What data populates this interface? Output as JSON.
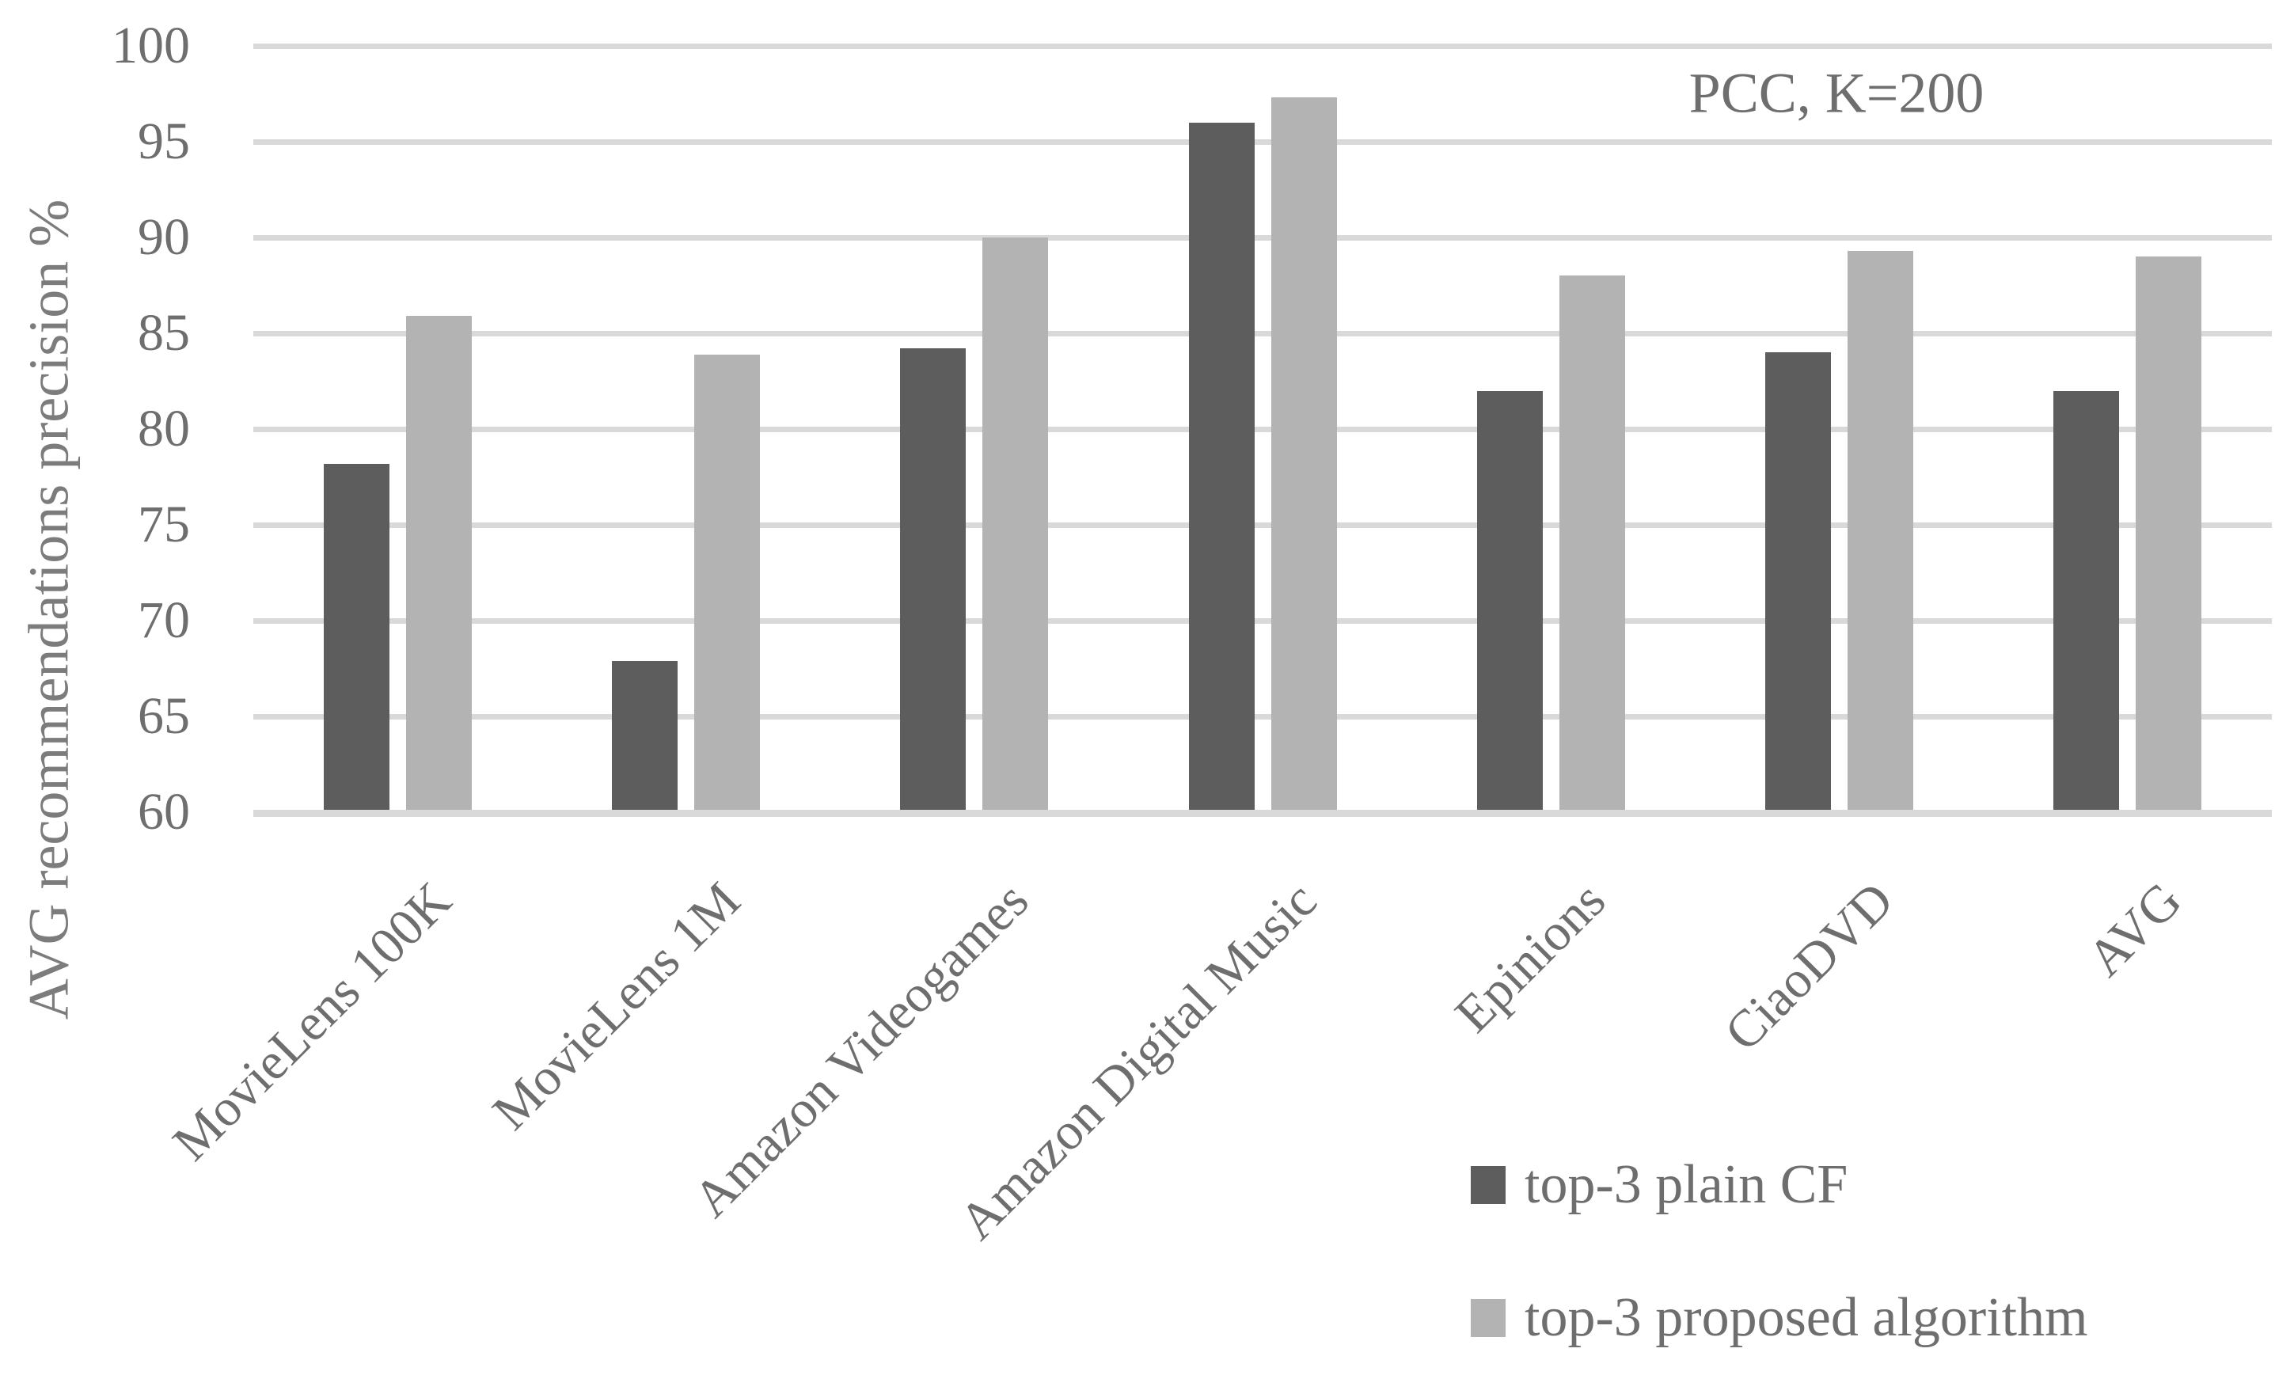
{
  "chart_data": {
    "type": "bar",
    "title": "",
    "annotation": "PCC, K=200",
    "y_axis_title": "AVG recommendations precision %",
    "categories": [
      "MovieLens 100K",
      "MovieLens 1M",
      "Amazon Videogames",
      "Amazon Digital Music",
      "Epinions",
      "CiaoDVD",
      "AVG"
    ],
    "series": [
      {
        "name": "top-3 plain CF",
        "color": "#5d5d5d",
        "values": [
          78.2,
          67.9,
          84.2,
          96,
          82,
          84,
          82
        ]
      },
      {
        "name": "top-3 proposed algorithm",
        "color": "#b3b3b3",
        "values": [
          85.9,
          83.9,
          90,
          97.3,
          88,
          89.3,
          89
        ]
      }
    ],
    "y_axis": {
      "min": 60,
      "max": 100,
      "step": 5,
      "ticks": [
        100,
        95,
        90,
        85,
        80,
        75,
        70,
        65,
        60
      ]
    },
    "grid": true,
    "gridline_color": "#d9d9d9",
    "legend_position": "bottom-right"
  }
}
